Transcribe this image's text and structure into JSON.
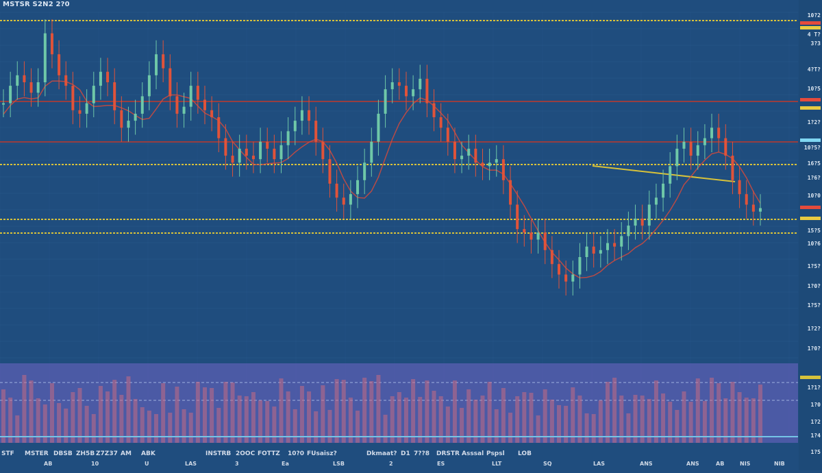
{
  "title": "MSTSR S2N2 2?0",
  "chart_data": {
    "type": "candlestick",
    "title": "",
    "xlabel": "",
    "ylabel": "",
    "grid": true,
    "legend": "none",
    "ylim": [
      0,
      100
    ],
    "colors": {
      "background": "#1f4d7e",
      "candle_up": "#6fc8a8",
      "candle_down": "#e0533a",
      "moving_average": "#d44a3c",
      "support_line": "#d8c23a",
      "resistance_line": "#c0392b",
      "volume_panel": "#5b5fb3",
      "volume_bar": "#c76b84"
    },
    "series": [
      {
        "type": "price",
        "x": [
          1,
          2,
          3,
          4,
          5,
          6,
          7,
          8,
          9,
          10,
          11,
          12,
          13,
          14,
          15,
          16,
          17,
          18,
          19,
          20,
          21,
          22,
          23,
          24,
          25,
          26,
          27,
          28,
          29,
          30,
          31,
          32,
          33,
          34,
          35,
          36,
          37,
          38,
          39,
          40,
          41,
          42,
          43,
          44,
          45,
          46,
          47,
          48,
          49,
          50,
          51,
          52,
          53,
          54,
          55,
          56,
          57,
          58,
          59,
          60,
          61,
          62,
          63,
          64,
          65,
          66,
          67,
          68,
          69,
          70,
          71,
          72,
          73,
          74,
          75,
          76,
          77,
          78,
          79,
          80,
          81,
          82,
          83,
          84,
          85,
          86,
          87,
          88,
          89,
          90,
          91,
          92,
          93,
          94,
          95,
          96,
          97,
          98,
          99,
          100,
          101,
          102,
          103,
          104,
          105,
          106,
          107,
          108,
          109,
          110
        ],
        "values": [
          74,
          79,
          82,
          80,
          77,
          80,
          94,
          88,
          82,
          79,
          72,
          71,
          74,
          79,
          83,
          80,
          72,
          67,
          69,
          71,
          76,
          82,
          88,
          84,
          76,
          71,
          73,
          79,
          75,
          72,
          70,
          64,
          59,
          57,
          61,
          59,
          58,
          63,
          61,
          58,
          62,
          66,
          69,
          72,
          69,
          63,
          58,
          51,
          47,
          45,
          48,
          52,
          57,
          63,
          71,
          78,
          80,
          79,
          76,
          78,
          81,
          74,
          70,
          67,
          63,
          58,
          59,
          61,
          57,
          56,
          57,
          58,
          52,
          45,
          38,
          37,
          35,
          37,
          32,
          28,
          25,
          23,
          25,
          30,
          33,
          31,
          32,
          34,
          33,
          36,
          39,
          41,
          39,
          45,
          47,
          51,
          56,
          61,
          63,
          59,
          62,
          64,
          67,
          64,
          59,
          52,
          48,
          45,
          43,
          44
        ]
      }
    ],
    "price_labels": [
      "10?2",
      "4 T?",
      "3?3",
      "4?T?",
      "10?5",
      "1?2?",
      "10?5?",
      "16?5",
      "1?6?",
      "10?0",
      "15?5",
      "10?6",
      "1?5?",
      "1?0?",
      "1?5?",
      "1?2?",
      "1?0?",
      "1?1?",
      "1?0",
      "1?2",
      "1?4",
      "1?5"
    ],
    "x_tick_labels": [
      "AB",
      "10",
      "U",
      "LAS",
      "3",
      "Ea",
      "LSB",
      "2",
      "ES",
      "LLT",
      "SQ",
      "LAS",
      "ANS",
      "ANS",
      "AB",
      "NIS",
      "NIB"
    ],
    "footer_labels": [
      "STF",
      "MSTER",
      "DBSB",
      "ZH5B",
      "Z7Z37",
      "AM",
      "ABK",
      "INSTRB",
      "2OOC",
      "FOTTZ",
      "10?0",
      "FUsaisz?",
      "Dkmaat?",
      "D1",
      "7??8",
      "DRSTR",
      "Asssal",
      "Pspsl",
      "LOB"
    ]
  }
}
